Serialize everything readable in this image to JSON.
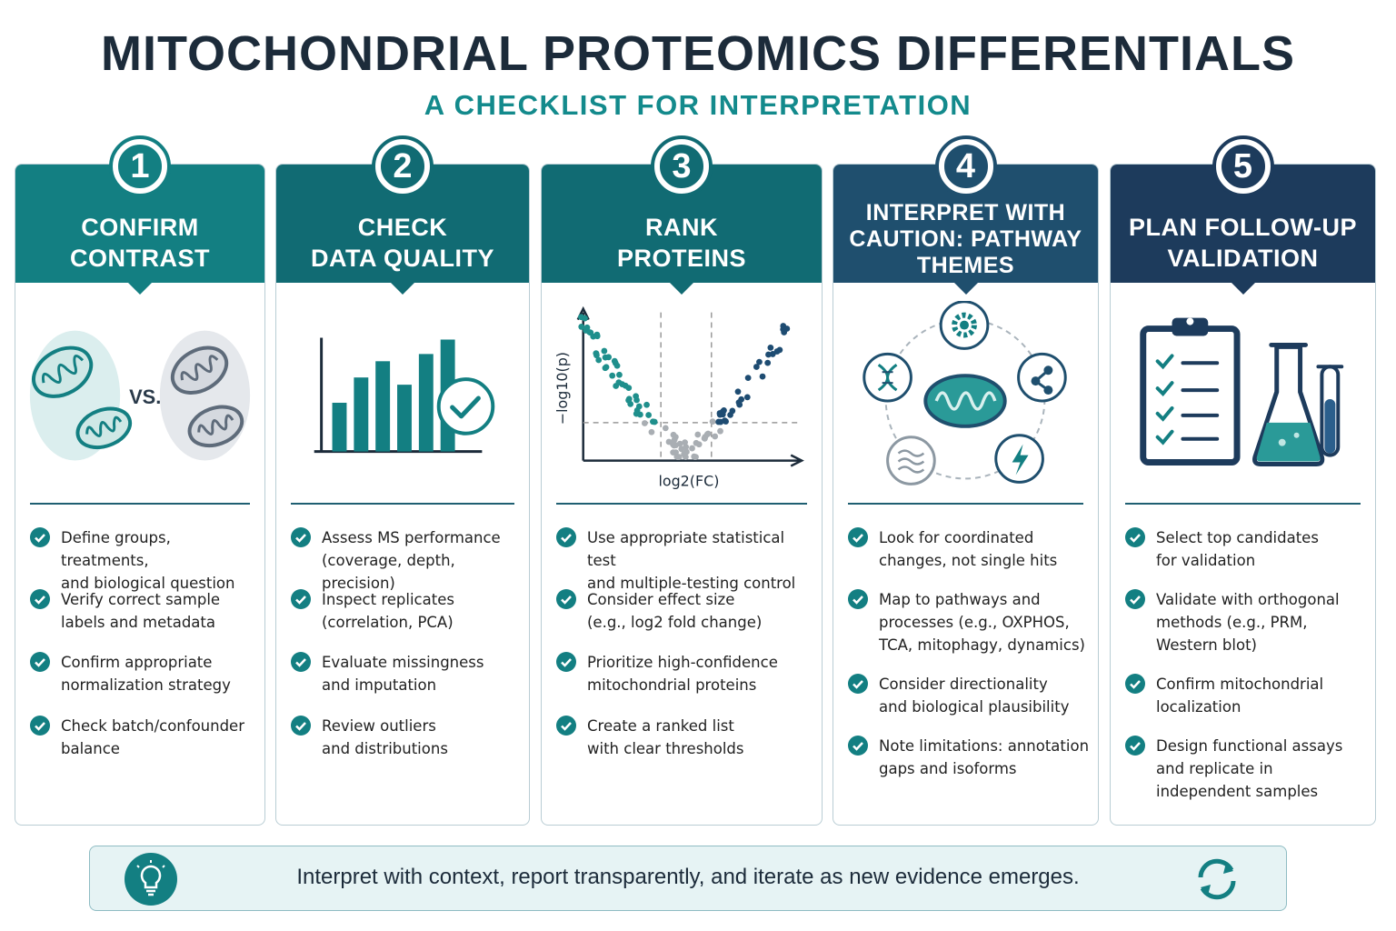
{
  "header": {
    "title": "MITOCHONDRIAL PROTEOMICS DIFFERENTIALS",
    "subtitle": "A CHECKLIST FOR INTERPRETATION"
  },
  "colors": {
    "teal": "#137f82",
    "teal_dark": "#116b73",
    "slate_blue": "#1f4f6e",
    "navy": "#1d3b5c",
    "navy_dark": "#1a3350",
    "check": "#137f82"
  },
  "columns": [
    {
      "number": "1",
      "title": "CONFIRM\nCONTRAST",
      "illustration": [
        "mitochondrion-icon",
        "mitochondrion-icon"
      ],
      "vs_label": "VS.",
      "items": [
        "Define groups, treatments,\nand biological question",
        "Verify correct sample\nlabels and metadata",
        "Confirm appropriate\nnormalization strategy",
        "Check batch/confounder\nbalance"
      ]
    },
    {
      "number": "2",
      "title": "CHECK\nDATA QUALITY",
      "illustration": [
        "bar-chart-icon",
        "check-circle-icon"
      ],
      "items": [
        "Assess MS performance\n(coverage, depth, precision)",
        "Inspect replicates\n(correlation, PCA)",
        "Evaluate missingness\nand imputation",
        "Review outliers\nand distributions"
      ]
    },
    {
      "number": "3",
      "title": "RANK\nPROTEINS",
      "illustration": [
        "volcano-plot-icon"
      ],
      "y_axis_label": "−log10(p)",
      "x_axis_label": "log2(FC)",
      "items": [
        "Use appropriate statistical test\nand multiple-testing control",
        "Consider effect size\n(e.g., log2 fold change)",
        "Prioritize high-confidence\nmitochondrial proteins",
        "Create a ranked list\nwith clear thresholds"
      ]
    },
    {
      "number": "4",
      "title": "INTERPRET WITH\nCAUTION: PATHWAY\nTHEMES",
      "illustration": [
        "mitochondrion-icon",
        "gear-icon",
        "dna-icon",
        "network-icon",
        "lightning-icon",
        "membrane-icon"
      ],
      "items": [
        "Look for coordinated\nchanges, not single hits",
        "Map to pathways and\nprocesses (e.g., OXPHOS,\nTCA, mitophagy, dynamics)",
        "Consider directionality\nand biological plausibility",
        "Note limitations: annotation\ngaps and isoforms"
      ]
    },
    {
      "number": "5",
      "title": "PLAN FOLLOW-UP\nVALIDATION",
      "illustration": [
        "clipboard-icon",
        "flask-icon",
        "test-tube-icon"
      ],
      "items": [
        "Select top candidates\nfor validation",
        "Validate with orthogonal\nmethods (e.g., PRM,\nWestern blot)",
        "Confirm mitochondrial\nlocalization",
        "Design functional assays\nand replicate in\nindependent samples"
      ]
    }
  ],
  "footer": {
    "icon": "lightbulb-icon",
    "text": "Interpret with context, report transparently, and iterate as new evidence emerges.",
    "end_icon": "refresh-cycle-icon"
  }
}
